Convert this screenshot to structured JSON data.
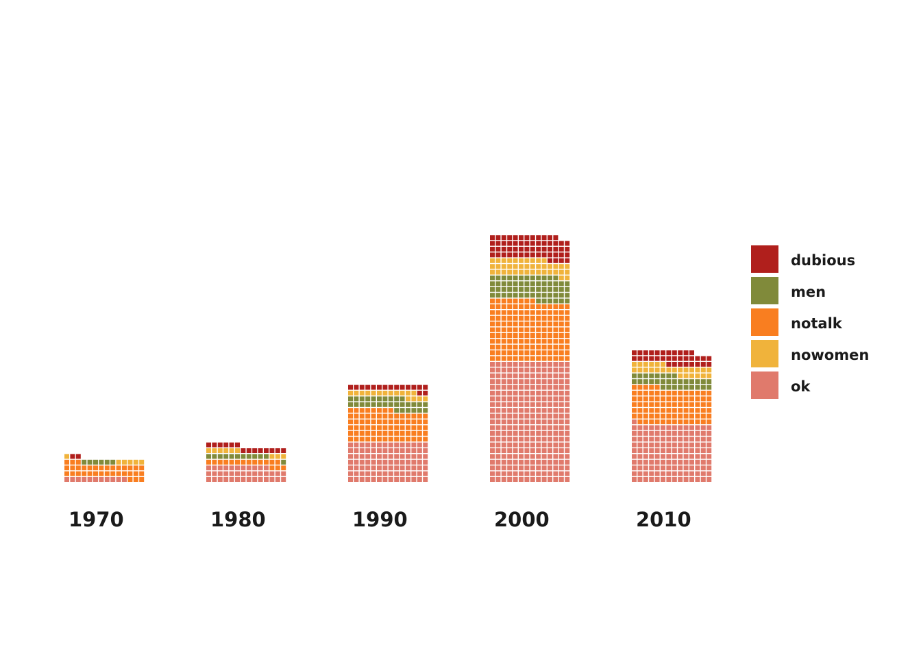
{
  "chart_data": {
    "type": "waffle",
    "unit": "one square per film",
    "squares_per_row": 14,
    "categories": [
      "1970",
      "1980",
      "1990",
      "2000",
      "2010"
    ],
    "series": [
      {
        "name": "ok",
        "color": "#E07A6C",
        "values": [
          11,
          39,
          98,
          294,
          141
        ]
      },
      {
        "name": "notalk",
        "color": "#F97E20",
        "values": [
          34,
          16,
          78,
          148,
          88
        ]
      },
      {
        "name": "men",
        "color": "#808A3A",
        "values": [
          6,
          12,
          30,
          60,
          31
        ]
      },
      {
        "name": "nowomen",
        "color": "#F0B33B",
        "values": [
          6,
          9,
          16,
          40,
          26
        ]
      },
      {
        "name": "dubious",
        "color": "#B01F1C",
        "values": [
          2,
          14,
          16,
          58,
          33
        ]
      }
    ],
    "legend": {
      "position": "right",
      "entries": [
        "dubious",
        "men",
        "notalk",
        "nowomen",
        "ok"
      ]
    },
    "grid": false
  }
}
